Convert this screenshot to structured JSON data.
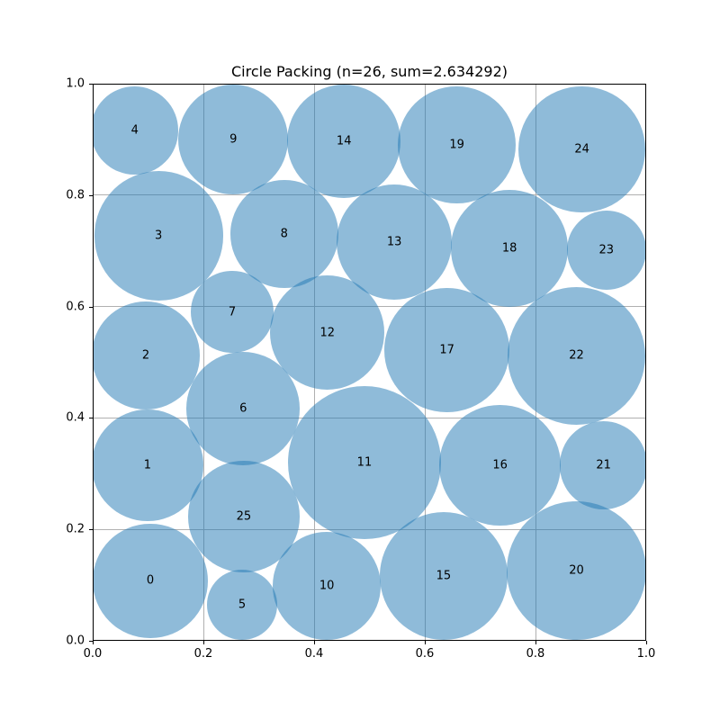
{
  "title": "Circle Packing (n=26, sum=2.634292)",
  "colors": {
    "circle_base": "#1f77b4",
    "circle_fill": "rgba(31, 119, 180, 0.5)",
    "grid": "#b0b0b0",
    "axis": "#000000",
    "text": "#000000",
    "background": "#ffffff"
  },
  "chart_data": {
    "type": "scatter",
    "variant": "circle-packing",
    "title": "Circle Packing (n=26, sum=2.634292)",
    "n": 26,
    "sum_of_radii": 2.634292,
    "xlabel": "",
    "ylabel": "",
    "xlim": [
      0.0,
      1.0
    ],
    "ylim": [
      0.0,
      1.0
    ],
    "grid": true,
    "xticks": [
      0.0,
      0.2,
      0.4,
      0.6,
      0.8,
      1.0
    ],
    "yticks": [
      0.0,
      0.2,
      0.4,
      0.6,
      0.8,
      1.0
    ],
    "tick_format": "0.1f",
    "circles": [
      {
        "id": 0,
        "x": 0.104,
        "y": 0.108,
        "r": 0.103
      },
      {
        "id": 1,
        "x": 0.099,
        "y": 0.315,
        "r": 0.1
      },
      {
        "id": 2,
        "x": 0.096,
        "y": 0.512,
        "r": 0.097
      },
      {
        "id": 3,
        "x": 0.119,
        "y": 0.727,
        "r": 0.116
      },
      {
        "id": 4,
        "x": 0.076,
        "y": 0.916,
        "r": 0.079
      },
      {
        "id": 5,
        "x": 0.27,
        "y": 0.065,
        "r": 0.063
      },
      {
        "id": 6,
        "x": 0.272,
        "y": 0.417,
        "r": 0.102
      },
      {
        "id": 7,
        "x": 0.252,
        "y": 0.59,
        "r": 0.074
      },
      {
        "id": 8,
        "x": 0.346,
        "y": 0.73,
        "r": 0.097
      },
      {
        "id": 9,
        "x": 0.254,
        "y": 0.9,
        "r": 0.099
      },
      {
        "id": 10,
        "x": 0.423,
        "y": 0.099,
        "r": 0.097
      },
      {
        "id": 11,
        "x": 0.491,
        "y": 0.32,
        "r": 0.138
      },
      {
        "id": 12,
        "x": 0.424,
        "y": 0.553,
        "r": 0.103
      },
      {
        "id": 13,
        "x": 0.545,
        "y": 0.716,
        "r": 0.104
      },
      {
        "id": 14,
        "x": 0.454,
        "y": 0.897,
        "r": 0.102
      },
      {
        "id": 15,
        "x": 0.634,
        "y": 0.116,
        "r": 0.115
      },
      {
        "id": 16,
        "x": 0.736,
        "y": 0.315,
        "r": 0.109
      },
      {
        "id": 17,
        "x": 0.64,
        "y": 0.522,
        "r": 0.112
      },
      {
        "id": 18,
        "x": 0.753,
        "y": 0.704,
        "r": 0.105
      },
      {
        "id": 19,
        "x": 0.658,
        "y": 0.89,
        "r": 0.106
      },
      {
        "id": 20,
        "x": 0.874,
        "y": 0.126,
        "r": 0.125
      },
      {
        "id": 21,
        "x": 0.923,
        "y": 0.315,
        "r": 0.079
      },
      {
        "id": 22,
        "x": 0.874,
        "y": 0.512,
        "r": 0.124
      },
      {
        "id": 23,
        "x": 0.928,
        "y": 0.701,
        "r": 0.071
      },
      {
        "id": 24,
        "x": 0.884,
        "y": 0.882,
        "r": 0.114
      },
      {
        "id": 25,
        "x": 0.273,
        "y": 0.223,
        "r": 0.1
      }
    ]
  }
}
